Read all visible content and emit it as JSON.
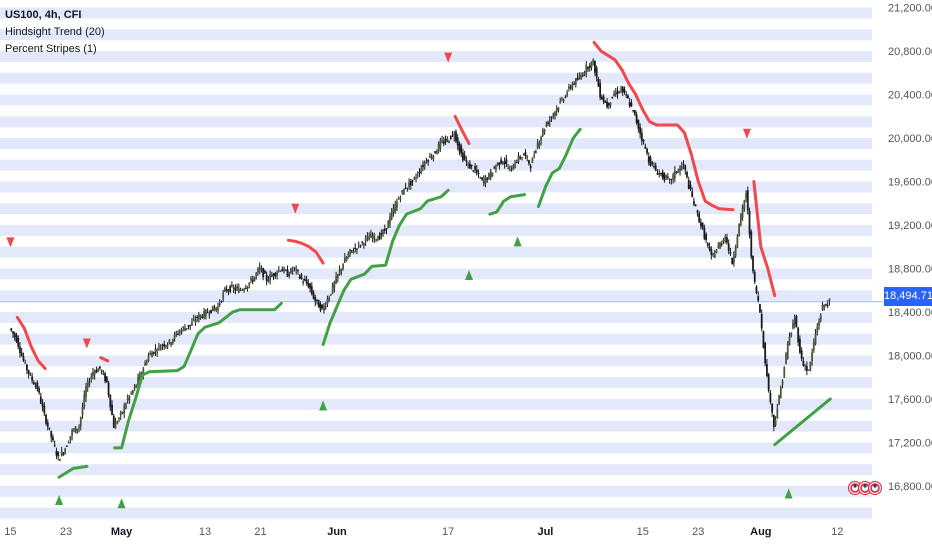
{
  "legend": {
    "symbol": "US100, 4h, CFI",
    "indicator_1": "Hindsight Trend (20)",
    "indicator_2": "Percent Stripes (1)"
  },
  "last_price_label": "18,494.71",
  "colors": {
    "stripe": "#e3e9fb",
    "up": "#43a047",
    "down": "#f0494c",
    "candle": "#1b1b1b",
    "price_line": "#2962ff"
  },
  "chart_data": {
    "type": "candlestick",
    "y_axis": {
      "ticks": [
        16800,
        17200,
        17600,
        18000,
        18400,
        18800,
        19200,
        19600,
        20000,
        20400,
        20800,
        21200
      ],
      "tick_labels": [
        "16,800.00",
        "17,200.00",
        "17,600.00",
        "18,000.00",
        "18,400.00",
        "18,800.00",
        "19,200.00",
        "19,600.00",
        "20,000.00",
        "20,400.00",
        "20,800.00",
        "21,200.00"
      ],
      "ylim": [
        16560,
        21270
      ]
    },
    "x_axis": {
      "ticks": [
        {
          "label": "15",
          "day": 0
        },
        {
          "label": "23",
          "day": 8
        },
        {
          "label": "May",
          "day": 16
        },
        {
          "label": "13",
          "day": 28
        },
        {
          "label": "21",
          "day": 36
        },
        {
          "label": "Jun",
          "day": 47
        },
        {
          "label": "17",
          "day": 63
        },
        {
          "label": "Jul",
          "day": 77
        },
        {
          "label": "15",
          "day": 91
        },
        {
          "label": "23",
          "day": 99
        },
        {
          "label": "Aug",
          "day": 108
        },
        {
          "label": "12",
          "day": 119
        }
      ],
      "xlim": [
        -1.5,
        124
      ]
    },
    "last_price": 18494.71,
    "close_series": [
      {
        "day": 0,
        "close": 18250
      },
      {
        "day": 1,
        "close": 18150
      },
      {
        "day": 2,
        "close": 17950
      },
      {
        "day": 3,
        "close": 17800
      },
      {
        "day": 4,
        "close": 17700
      },
      {
        "day": 5,
        "close": 17450
      },
      {
        "day": 6,
        "close": 17250
      },
      {
        "day": 7,
        "close": 17050
      },
      {
        "day": 8,
        "close": 17150
      },
      {
        "day": 9,
        "close": 17300
      },
      {
        "day": 10,
        "close": 17350
      },
      {
        "day": 11,
        "close": 17700
      },
      {
        "day": 12,
        "close": 17850
      },
      {
        "day": 13,
        "close": 17880
      },
      {
        "day": 14,
        "close": 17750
      },
      {
        "day": 15,
        "close": 17350
      },
      {
        "day": 16,
        "close": 17450
      },
      {
        "day": 17,
        "close": 17600
      },
      {
        "day": 18,
        "close": 17700
      },
      {
        "day": 19,
        "close": 17850
      },
      {
        "day": 20,
        "close": 18000
      },
      {
        "day": 21,
        "close": 18050
      },
      {
        "day": 22,
        "close": 18100
      },
      {
        "day": 23,
        "close": 18120
      },
      {
        "day": 24,
        "close": 18200
      },
      {
        "day": 25,
        "close": 18250
      },
      {
        "day": 26,
        "close": 18280
      },
      {
        "day": 27,
        "close": 18350
      },
      {
        "day": 28,
        "close": 18380
      },
      {
        "day": 29,
        "close": 18420
      },
      {
        "day": 30,
        "close": 18450
      },
      {
        "day": 31,
        "close": 18600
      },
      {
        "day": 32,
        "close": 18620
      },
      {
        "day": 33,
        "close": 18600
      },
      {
        "day": 34,
        "close": 18640
      },
      {
        "day": 35,
        "close": 18700
      },
      {
        "day": 36,
        "close": 18800
      },
      {
        "day": 37,
        "close": 18700
      },
      {
        "day": 38,
        "close": 18750
      },
      {
        "day": 39,
        "close": 18800
      },
      {
        "day": 40,
        "close": 18750
      },
      {
        "day": 41,
        "close": 18800
      },
      {
        "day": 42,
        "close": 18700
      },
      {
        "day": 43,
        "close": 18650
      },
      {
        "day": 44,
        "close": 18500
      },
      {
        "day": 45,
        "close": 18420
      },
      {
        "day": 46,
        "close": 18550
      },
      {
        "day": 47,
        "close": 18700
      },
      {
        "day": 48,
        "close": 18850
      },
      {
        "day": 49,
        "close": 18950
      },
      {
        "day": 50,
        "close": 19000
      },
      {
        "day": 51,
        "close": 19050
      },
      {
        "day": 52,
        "close": 19100
      },
      {
        "day": 53,
        "close": 19080
      },
      {
        "day": 54,
        "close": 19150
      },
      {
        "day": 55,
        "close": 19300
      },
      {
        "day": 56,
        "close": 19450
      },
      {
        "day": 57,
        "close": 19550
      },
      {
        "day": 58,
        "close": 19600
      },
      {
        "day": 59,
        "close": 19700
      },
      {
        "day": 60,
        "close": 19800
      },
      {
        "day": 61,
        "close": 19850
      },
      {
        "day": 62,
        "close": 19950
      },
      {
        "day": 63,
        "close": 19980
      },
      {
        "day": 64,
        "close": 20050
      },
      {
        "day": 65,
        "close": 19850
      },
      {
        "day": 66,
        "close": 19750
      },
      {
        "day": 67,
        "close": 19700
      },
      {
        "day": 68,
        "close": 19600
      },
      {
        "day": 69,
        "close": 19650
      },
      {
        "day": 70,
        "close": 19750
      },
      {
        "day": 71,
        "close": 19800
      },
      {
        "day": 72,
        "close": 19700
      },
      {
        "day": 73,
        "close": 19800
      },
      {
        "day": 74,
        "close": 19850
      },
      {
        "day": 75,
        "close": 19750
      },
      {
        "day": 76,
        "close": 19950
      },
      {
        "day": 77,
        "close": 20100
      },
      {
        "day": 78,
        "close": 20200
      },
      {
        "day": 79,
        "close": 20300
      },
      {
        "day": 80,
        "close": 20400
      },
      {
        "day": 81,
        "close": 20500
      },
      {
        "day": 82,
        "close": 20550
      },
      {
        "day": 83,
        "close": 20650
      },
      {
        "day": 84,
        "close": 20700
      },
      {
        "day": 85,
        "close": 20400
      },
      {
        "day": 86,
        "close": 20300
      },
      {
        "day": 87,
        "close": 20400
      },
      {
        "day": 88,
        "close": 20450
      },
      {
        "day": 89,
        "close": 20350
      },
      {
        "day": 90,
        "close": 20200
      },
      {
        "day": 91,
        "close": 20000
      },
      {
        "day": 92,
        "close": 19800
      },
      {
        "day": 93,
        "close": 19700
      },
      {
        "day": 94,
        "close": 19650
      },
      {
        "day": 95,
        "close": 19600
      },
      {
        "day": 96,
        "close": 19700
      },
      {
        "day": 97,
        "close": 19750
      },
      {
        "day": 98,
        "close": 19500
      },
      {
        "day": 99,
        "close": 19300
      },
      {
        "day": 100,
        "close": 19100
      },
      {
        "day": 101,
        "close": 18900
      },
      {
        "day": 102,
        "close": 19000
      },
      {
        "day": 103,
        "close": 19100
      },
      {
        "day": 104,
        "close": 18850
      },
      {
        "day": 105,
        "close": 19200
      },
      {
        "day": 106,
        "close": 19500
      },
      {
        "day": 107,
        "close": 18750
      },
      {
        "day": 108,
        "close": 18400
      },
      {
        "day": 109,
        "close": 17800
      },
      {
        "day": 110,
        "close": 17350
      },
      {
        "day": 111,
        "close": 17700
      },
      {
        "day": 112,
        "close": 18100
      },
      {
        "day": 113,
        "close": 18350
      },
      {
        "day": 114,
        "close": 17950
      },
      {
        "day": 115,
        "close": 17850
      },
      {
        "day": 116,
        "close": 18200
      },
      {
        "day": 117,
        "close": 18450
      },
      {
        "day": 118,
        "close": 18494.71
      }
    ],
    "trend_up_segments": [
      [
        [
          7,
          16880
        ],
        [
          8,
          16920
        ],
        [
          9,
          16960
        ],
        [
          11,
          16980
        ]
      ],
      [
        [
          15,
          17150
        ],
        [
          16,
          17150
        ],
        [
          17,
          17400
        ],
        [
          18,
          17600
        ],
        [
          19,
          17820
        ],
        [
          20,
          17850
        ],
        [
          24,
          17860
        ],
        [
          25,
          17900
        ],
        [
          26,
          18050
        ],
        [
          27,
          18200
        ],
        [
          28,
          18260
        ],
        [
          30,
          18300
        ],
        [
          31,
          18350
        ],
        [
          32,
          18400
        ],
        [
          33,
          18420
        ],
        [
          38,
          18420
        ],
        [
          39,
          18480
        ]
      ],
      [
        [
          45,
          18100
        ],
        [
          46,
          18300
        ],
        [
          47,
          18450
        ],
        [
          48,
          18600
        ],
        [
          49,
          18700
        ],
        [
          51,
          18750
        ],
        [
          52,
          18820
        ],
        [
          54,
          18830
        ],
        [
          55,
          19050
        ],
        [
          56,
          19200
        ],
        [
          57,
          19300
        ],
        [
          59,
          19350
        ],
        [
          60,
          19420
        ],
        [
          62,
          19460
        ],
        [
          63,
          19520
        ]
      ],
      [
        [
          69,
          19300
        ],
        [
          70,
          19320
        ],
        [
          71,
          19420
        ],
        [
          72,
          19460
        ],
        [
          74,
          19480
        ]
      ],
      [
        [
          76,
          19370
        ],
        [
          77,
          19550
        ],
        [
          78,
          19680
        ],
        [
          79,
          19720
        ],
        [
          80,
          19850
        ],
        [
          81,
          20000
        ],
        [
          82,
          20080
        ]
      ],
      [
        [
          110,
          17180
        ],
        [
          118,
          17600
        ]
      ]
    ],
    "trend_down_segments": [
      [
        [
          1,
          18350
        ],
        [
          2,
          18250
        ],
        [
          3,
          18080
        ],
        [
          4,
          17950
        ],
        [
          5,
          17880
        ]
      ],
      [
        [
          13,
          17980
        ],
        [
          14,
          17950
        ]
      ],
      [
        [
          40,
          19060
        ],
        [
          41,
          19050
        ],
        [
          42,
          19030
        ],
        [
          43,
          19000
        ],
        [
          44,
          18950
        ],
        [
          45,
          18850
        ]
      ],
      [
        [
          64,
          20200
        ],
        [
          65,
          20070
        ],
        [
          66,
          19950
        ]
      ],
      [
        [
          84,
          20880
        ],
        [
          85,
          20800
        ],
        [
          86,
          20760
        ],
        [
          87,
          20720
        ],
        [
          88,
          20630
        ],
        [
          89,
          20500
        ],
        [
          90,
          20400
        ],
        [
          91,
          20260
        ],
        [
          92,
          20150
        ],
        [
          93,
          20120
        ],
        [
          96,
          20120
        ],
        [
          97,
          20050
        ],
        [
          98,
          19850
        ],
        [
          99,
          19600
        ],
        [
          100,
          19420
        ],
        [
          101,
          19380
        ],
        [
          102,
          19350
        ],
        [
          104,
          19340
        ]
      ],
      [
        [
          107,
          19600
        ],
        [
          108,
          19000
        ],
        [
          109,
          18800
        ],
        [
          110,
          18550
        ]
      ]
    ],
    "up_markers": [
      [
        7,
        16670
      ],
      [
        16,
        16640
      ],
      [
        45,
        17540
      ],
      [
        66,
        18740
      ],
      [
        73,
        19050
      ],
      [
        112,
        16730
      ]
    ],
    "down_markers": [
      [
        0,
        19040
      ],
      [
        11,
        18110
      ],
      [
        41,
        19350
      ],
      [
        63,
        20740
      ],
      [
        106,
        20040
      ]
    ]
  }
}
